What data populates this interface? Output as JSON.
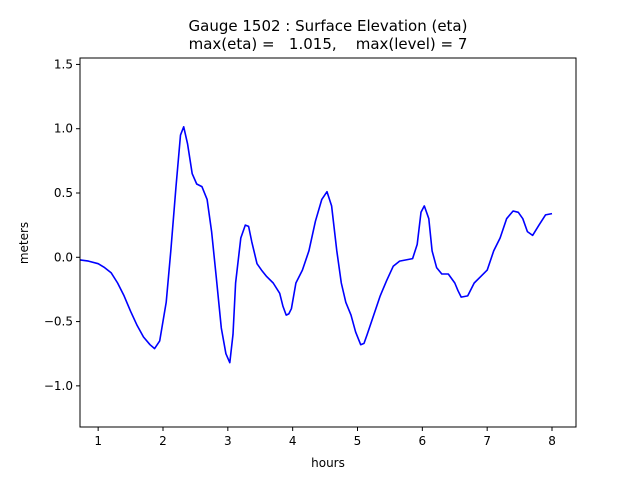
{
  "chart_data": {
    "type": "line",
    "title_line1": "Gauge 1502 : Surface Elevation (eta)",
    "title_line2": "max(eta) =   1.015,    max(level) = 7",
    "xlabel": "hours",
    "ylabel": "meters",
    "xlim": [
      0.72,
      8.37
    ],
    "ylim": [
      -1.32,
      1.55
    ],
    "xticks": [
      1,
      2,
      3,
      4,
      5,
      6,
      7,
      8
    ],
    "xtick_labels": [
      "1",
      "2",
      "3",
      "4",
      "5",
      "6",
      "7",
      "8"
    ],
    "yticks": [
      -1.0,
      -0.5,
      0.0,
      0.5,
      1.0,
      1.5
    ],
    "ytick_labels": [
      "−1.0",
      "−0.5",
      "0.0",
      "0.5",
      "1.0",
      "1.5"
    ],
    "grid": false,
    "series": [
      {
        "color": "#0000ff",
        "x": [
          0.72,
          0.85,
          1.0,
          1.1,
          1.2,
          1.3,
          1.4,
          1.5,
          1.6,
          1.7,
          1.8,
          1.87,
          1.95,
          2.05,
          2.12,
          2.2,
          2.27,
          2.32,
          2.38,
          2.45,
          2.52,
          2.6,
          2.68,
          2.75,
          2.82,
          2.9,
          2.97,
          3.03,
          3.08,
          3.12,
          3.2,
          3.27,
          3.32,
          3.37,
          3.45,
          3.52,
          3.6,
          3.7,
          3.8,
          3.85,
          3.9,
          3.94,
          3.98,
          4.05,
          4.15,
          4.25,
          4.35,
          4.45,
          4.53,
          4.6,
          4.68,
          4.75,
          4.82,
          4.9,
          4.97,
          5.05,
          5.1,
          5.15,
          5.25,
          5.35,
          5.45,
          5.55,
          5.65,
          5.75,
          5.85,
          5.92,
          5.98,
          6.03,
          6.1,
          6.15,
          6.22,
          6.3,
          6.4,
          6.5,
          6.55,
          6.6,
          6.7,
          6.8,
          6.9,
          7.0,
          7.1,
          7.2,
          7.3,
          7.4,
          7.48,
          7.55,
          7.62,
          7.7,
          7.8,
          7.9,
          8.0
        ],
        "y": [
          -0.02,
          -0.03,
          -0.05,
          -0.08,
          -0.12,
          -0.2,
          -0.3,
          -0.42,
          -0.53,
          -0.62,
          -0.68,
          -0.71,
          -0.65,
          -0.35,
          0.05,
          0.55,
          0.95,
          1.015,
          0.88,
          0.65,
          0.57,
          0.55,
          0.45,
          0.2,
          -0.15,
          -0.55,
          -0.75,
          -0.82,
          -0.6,
          -0.2,
          0.15,
          0.25,
          0.24,
          0.12,
          -0.05,
          -0.1,
          -0.15,
          -0.2,
          -0.28,
          -0.38,
          -0.45,
          -0.44,
          -0.4,
          -0.2,
          -0.1,
          0.05,
          0.28,
          0.45,
          0.51,
          0.4,
          0.05,
          -0.2,
          -0.35,
          -0.45,
          -0.58,
          -0.68,
          -0.67,
          -0.6,
          -0.45,
          -0.3,
          -0.18,
          -0.07,
          -0.03,
          -0.02,
          -0.01,
          0.1,
          0.35,
          0.4,
          0.3,
          0.05,
          -0.08,
          -0.13,
          -0.13,
          -0.2,
          -0.26,
          -0.31,
          -0.3,
          -0.2,
          -0.15,
          -0.1,
          0.05,
          0.15,
          0.3,
          0.36,
          0.35,
          0.3,
          0.2,
          0.17,
          0.25,
          0.33,
          0.34
        ]
      }
    ]
  }
}
